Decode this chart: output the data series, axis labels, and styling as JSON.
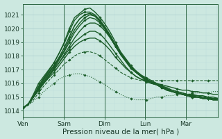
{
  "xlabel": "Pression niveau de la mer( hPa )",
  "background_color": "#cce8e0",
  "grid_color_major": "#aacccc",
  "grid_color_minor": "#bbdddd",
  "line_color": "#1a5c28",
  "ylim": [
    1013.5,
    1021.8
  ],
  "yticks": [
    1014,
    1015,
    1016,
    1017,
    1018,
    1019,
    1020,
    1021
  ],
  "day_labels": [
    "Ven",
    "Sam",
    "Dim",
    "Lun",
    "Mar"
  ],
  "day_positions": [
    0,
    24,
    48,
    72,
    96
  ],
  "total_hours": 115,
  "lines": [
    [
      1014.2,
      1014.5,
      1015.2,
      1016.0,
      1016.5,
      1017.0,
      1017.5,
      1018.2,
      1019.0,
      1020.0,
      1020.8,
      1021.1,
      1021.4,
      1021.5,
      1021.2,
      1020.8,
      1020.3,
      1019.7,
      1019.0,
      1018.3,
      1017.8,
      1017.3,
      1016.9,
      1016.6,
      1016.4,
      1016.2,
      1016.0,
      1015.8,
      1015.6,
      1015.4,
      1015.3,
      1015.2,
      1015.1,
      1015.0,
      1015.0,
      1014.9,
      1014.9,
      1014.8,
      1014.8
    ],
    [
      1014.2,
      1014.5,
      1015.1,
      1015.8,
      1016.4,
      1016.9,
      1017.5,
      1018.2,
      1018.9,
      1019.8,
      1020.6,
      1021.0,
      1021.2,
      1021.2,
      1021.0,
      1020.6,
      1020.1,
      1019.5,
      1018.8,
      1018.2,
      1017.7,
      1017.2,
      1016.8,
      1016.5,
      1016.3,
      1016.1,
      1015.9,
      1015.7,
      1015.6,
      1015.4,
      1015.3,
      1015.2,
      1015.1,
      1015.1,
      1015.0,
      1015.0,
      1014.9,
      1014.9,
      1014.8
    ],
    [
      1014.2,
      1014.5,
      1015.0,
      1015.7,
      1016.3,
      1016.8,
      1017.3,
      1017.9,
      1018.6,
      1019.4,
      1020.2,
      1020.7,
      1021.0,
      1021.1,
      1020.9,
      1020.5,
      1020.0,
      1019.4,
      1018.7,
      1018.1,
      1017.6,
      1017.1,
      1016.8,
      1016.5,
      1016.2,
      1016.0,
      1015.9,
      1015.7,
      1015.5,
      1015.4,
      1015.3,
      1015.2,
      1015.1,
      1015.0,
      1015.0,
      1014.9,
      1014.9,
      1014.8,
      1014.8
    ],
    [
      1014.2,
      1014.5,
      1015.0,
      1015.6,
      1016.2,
      1016.7,
      1017.2,
      1017.8,
      1018.4,
      1019.2,
      1019.9,
      1020.4,
      1020.8,
      1021.0,
      1020.9,
      1020.5,
      1020.0,
      1019.4,
      1018.8,
      1018.2,
      1017.7,
      1017.2,
      1016.8,
      1016.5,
      1016.3,
      1016.1,
      1015.9,
      1015.7,
      1015.6,
      1015.4,
      1015.3,
      1015.2,
      1015.1,
      1015.0,
      1015.0,
      1014.9,
      1014.9,
      1014.8,
      1014.8
    ],
    [
      1014.2,
      1014.5,
      1015.0,
      1015.6,
      1016.1,
      1016.6,
      1017.1,
      1017.7,
      1018.3,
      1019.0,
      1019.7,
      1020.2,
      1020.6,
      1020.8,
      1020.7,
      1020.4,
      1019.9,
      1019.3,
      1018.7,
      1018.1,
      1017.6,
      1017.1,
      1016.8,
      1016.5,
      1016.2,
      1016.0,
      1015.9,
      1015.7,
      1015.5,
      1015.4,
      1015.3,
      1015.2,
      1015.1,
      1015.0,
      1015.0,
      1014.9,
      1014.9,
      1014.8,
      1014.8
    ],
    [
      1014.2,
      1014.5,
      1015.0,
      1015.5,
      1016.0,
      1016.5,
      1017.0,
      1017.5,
      1018.1,
      1018.7,
      1019.3,
      1019.8,
      1020.2,
      1020.4,
      1020.4,
      1020.2,
      1019.8,
      1019.3,
      1018.7,
      1018.2,
      1017.7,
      1017.2,
      1016.9,
      1016.6,
      1016.3,
      1016.1,
      1016.0,
      1015.8,
      1015.7,
      1015.5,
      1015.4,
      1015.3,
      1015.2,
      1015.1,
      1015.1,
      1015.0,
      1015.0,
      1014.9,
      1014.9
    ],
    [
      1014.2,
      1014.5,
      1015.0,
      1015.5,
      1016.0,
      1016.5,
      1017.0,
      1017.5,
      1018.0,
      1018.5,
      1019.0,
      1019.3,
      1019.6,
      1019.8,
      1019.8,
      1019.6,
      1019.2,
      1018.7,
      1018.2,
      1017.7,
      1017.2,
      1016.8,
      1016.5,
      1016.3,
      1016.1,
      1016.0,
      1015.9,
      1015.7,
      1015.6,
      1015.5,
      1015.4,
      1015.3,
      1015.2,
      1015.2,
      1015.1,
      1015.1,
      1015.0,
      1015.0,
      1014.9
    ],
    [
      1014.2,
      1014.5,
      1015.0,
      1015.5,
      1016.0,
      1016.4,
      1016.8,
      1017.3,
      1017.8,
      1018.3,
      1018.7,
      1019.0,
      1019.2,
      1019.3,
      1019.3,
      1019.1,
      1018.8,
      1018.4,
      1017.9,
      1017.5,
      1017.1,
      1016.8,
      1016.5,
      1016.3,
      1016.2,
      1016.1,
      1016.0,
      1015.9,
      1015.8,
      1015.7,
      1015.6,
      1015.5,
      1015.5,
      1015.4,
      1015.4,
      1015.3,
      1015.3,
      1015.2,
      1015.2
    ],
    [
      1014.2,
      1014.4,
      1014.8,
      1015.3,
      1015.8,
      1016.2,
      1016.6,
      1017.0,
      1017.4,
      1017.7,
      1018.0,
      1018.2,
      1018.3,
      1018.3,
      1018.2,
      1018.0,
      1017.7,
      1017.4,
      1017.1,
      1016.8,
      1016.6,
      1016.4,
      1016.3,
      1016.2,
      1016.2,
      1016.2,
      1016.2,
      1016.2,
      1016.2,
      1016.2,
      1016.2,
      1016.2,
      1016.2,
      1016.2,
      1016.2,
      1016.2,
      1016.2,
      1016.2,
      1016.2
    ],
    [
      1014.2,
      1014.4,
      1014.7,
      1015.0,
      1015.4,
      1015.7,
      1016.0,
      1016.3,
      1016.5,
      1016.6,
      1016.7,
      1016.7,
      1016.6,
      1016.5,
      1016.3,
      1016.1,
      1015.9,
      1015.6,
      1015.4,
      1015.2,
      1015.0,
      1014.9,
      1014.8,
      1014.8,
      1014.8,
      1014.9,
      1015.0,
      1015.0,
      1015.1,
      1015.1,
      1015.2,
      1015.2,
      1015.2,
      1015.3,
      1015.3,
      1015.3,
      1015.3,
      1015.4,
      1015.4
    ]
  ],
  "line_styles": [
    "-",
    "-",
    "-",
    "-",
    "-",
    "-",
    "-",
    "-",
    "--",
    ":"
  ],
  "line_widths": [
    1.0,
    1.0,
    1.2,
    1.0,
    1.0,
    1.0,
    1.0,
    1.0,
    0.8,
    0.8
  ],
  "marker_every": 3,
  "marker_size": 1.8,
  "tick_fontsize": 6.5,
  "xlabel_fontsize": 7.5
}
